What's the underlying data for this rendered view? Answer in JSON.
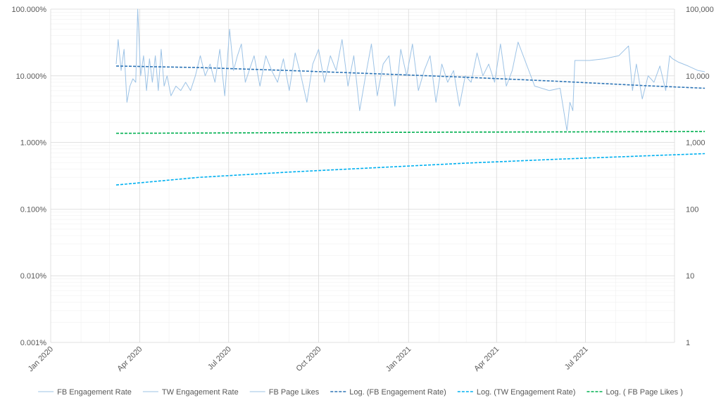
{
  "chart_data": {
    "type": "line",
    "title": "",
    "xlabel": "",
    "ylabel": "",
    "x_axis": {
      "type": "date",
      "range": [
        "2020-01-01",
        "2021-09-30"
      ],
      "tick_labels": [
        "Jan 2020",
        "Apr 2020",
        "Jul 2020",
        "Oct 2020",
        "Jan 2021",
        "Apr 2021",
        "Jul 2021"
      ]
    },
    "y_left": {
      "scale": "log",
      "range": [
        1e-05,
        1
      ],
      "tick_labels": [
        "0.001%",
        "0.010%",
        "0.100%",
        "1.000%",
        "10.000%",
        "100.000%"
      ]
    },
    "y_right": {
      "scale": "log",
      "range": [
        1,
        100000
      ],
      "tick_labels": [
        "1",
        "10",
        "100",
        "1,000",
        "10,000",
        "100,000"
      ]
    },
    "grid": true,
    "legend_position": "bottom",
    "colors": {
      "raw": "#9dc3e6",
      "fb_trend": "#2e75b6",
      "tw_trend": "#00b0f0",
      "likes_trend": "#00b050",
      "grid_major": "#d9d9d9",
      "grid_minor": "#f0f0f0",
      "text": "#595959"
    },
    "series": [
      {
        "name": "FB Engagement Rate",
        "axis": "left",
        "x": [
          "2020-03-08",
          "2020-03-10",
          "2020-03-13",
          "2020-03-16",
          "2020-03-19",
          "2020-03-22",
          "2020-03-25",
          "2020-03-28",
          "2020-03-30",
          "2020-04-02",
          "2020-04-05",
          "2020-04-08",
          "2020-04-11",
          "2020-04-14",
          "2020-04-17",
          "2020-04-20",
          "2020-04-23",
          "2020-04-26",
          "2020-04-29",
          "2020-05-03",
          "2020-05-08",
          "2020-05-13",
          "2020-05-18",
          "2020-05-23",
          "2020-05-28",
          "2020-06-02",
          "2020-06-07",
          "2020-06-12",
          "2020-06-17",
          "2020-06-22",
          "2020-06-27",
          "2020-07-02",
          "2020-07-06",
          "2020-07-10",
          "2020-07-14",
          "2020-07-18",
          "2020-07-22",
          "2020-07-27",
          "2020-08-02",
          "2020-08-08",
          "2020-08-14",
          "2020-08-20",
          "2020-08-26",
          "2020-09-01",
          "2020-09-07",
          "2020-09-13",
          "2020-09-19",
          "2020-09-25",
          "2020-10-01",
          "2020-10-07",
          "2020-10-13",
          "2020-10-19",
          "2020-10-25",
          "2020-10-31",
          "2020-11-06",
          "2020-11-12",
          "2020-11-18",
          "2020-11-24",
          "2020-11-30",
          "2020-12-06",
          "2020-12-12",
          "2020-12-18",
          "2020-12-24",
          "2020-12-30",
          "2021-01-05",
          "2021-01-11",
          "2021-01-17",
          "2021-01-23",
          "2021-01-29",
          "2021-02-04",
          "2021-02-10",
          "2021-02-16",
          "2021-02-22",
          "2021-02-28",
          "2021-03-06",
          "2021-03-12",
          "2021-03-18",
          "2021-03-24",
          "2021-03-30",
          "2021-04-05",
          "2021-04-11",
          "2021-04-17",
          "2021-04-23",
          "2021-05-10",
          "2021-05-25",
          "2021-06-05",
          "2021-06-12",
          "2021-06-15",
          "2021-06-18",
          "2021-06-20",
          "2021-07-05",
          "2021-07-20",
          "2021-08-04",
          "2021-08-14",
          "2021-08-18",
          "2021-08-22",
          "2021-08-28",
          "2021-09-03",
          "2021-09-09",
          "2021-09-15",
          "2021-09-21",
          "2021-09-25",
          "2021-09-28",
          "2021-10-04",
          "2021-10-14",
          "2021-10-24",
          "2021-10-31"
        ],
        "y": [
          0.15,
          0.35,
          0.12,
          0.25,
          0.04,
          0.07,
          0.09,
          0.08,
          1.0,
          0.1,
          0.2,
          0.06,
          0.18,
          0.08,
          0.2,
          0.06,
          0.25,
          0.07,
          0.1,
          0.05,
          0.07,
          0.06,
          0.08,
          0.06,
          0.1,
          0.2,
          0.1,
          0.15,
          0.08,
          0.25,
          0.05,
          0.5,
          0.12,
          0.2,
          0.3,
          0.08,
          0.12,
          0.2,
          0.07,
          0.2,
          0.12,
          0.08,
          0.18,
          0.06,
          0.22,
          0.1,
          0.04,
          0.15,
          0.25,
          0.08,
          0.2,
          0.12,
          0.35,
          0.07,
          0.2,
          0.03,
          0.1,
          0.3,
          0.05,
          0.15,
          0.2,
          0.035,
          0.25,
          0.1,
          0.3,
          0.06,
          0.12,
          0.2,
          0.04,
          0.15,
          0.08,
          0.12,
          0.035,
          0.1,
          0.08,
          0.22,
          0.1,
          0.15,
          0.08,
          0.3,
          0.07,
          0.12,
          0.32,
          0.07,
          0.06,
          0.065,
          0.015,
          0.04,
          0.03,
          0.17,
          0.17,
          0.18,
          0.2,
          0.28,
          0.06,
          0.15,
          0.045,
          0.1,
          0.08,
          0.14,
          0.06,
          0.2,
          0.18,
          0.16,
          0.14,
          0.12,
          0.115
        ]
      },
      {
        "name": "TW Engagement Rate",
        "axis": "left",
        "x": [],
        "y": []
      },
      {
        "name": "FB Page Likes",
        "axis": "right",
        "x": [],
        "y": []
      },
      {
        "name": "Log. (FB Engagement Rate)",
        "axis": "left",
        "style": "dashed",
        "x": [
          "2020-03-08",
          "2020-06-01",
          "2020-09-01",
          "2020-12-01",
          "2021-03-01",
          "2021-06-01",
          "2021-09-01",
          "2021-10-31"
        ],
        "y": [
          0.14,
          0.133,
          0.12,
          0.107,
          0.095,
          0.083,
          0.071,
          0.065
        ]
      },
      {
        "name": "Log. (TW Engagement Rate)",
        "axis": "left",
        "style": "dashed",
        "x": [
          "2020-03-08",
          "2020-06-01",
          "2020-09-01",
          "2020-12-01",
          "2021-03-01",
          "2021-06-01",
          "2021-09-01",
          "2021-10-31"
        ],
        "y": [
          0.0023,
          0.003,
          0.0036,
          0.0042,
          0.0049,
          0.0056,
          0.0063,
          0.0068
        ]
      },
      {
        "name": "Log. ( FB Page Likes )",
        "axis": "right",
        "style": "dashed",
        "x": [
          "2020-03-08",
          "2020-06-01",
          "2020-09-01",
          "2020-12-01",
          "2021-03-01",
          "2021-06-01",
          "2021-09-01",
          "2021-10-31"
        ],
        "y": [
          1370,
          1385,
          1400,
          1415,
          1428,
          1440,
          1450,
          1460
        ]
      }
    ]
  },
  "legend": [
    {
      "label": "FB Engagement Rate",
      "color": "#9dc3e6",
      "dashed": false
    },
    {
      "label": "TW Engagement Rate",
      "color": "#9dc3e6",
      "dashed": false
    },
    {
      "label": "FB Page Likes",
      "color": "#9dc3e6",
      "dashed": false
    },
    {
      "label": "Log. (FB Engagement Rate)",
      "color": "#2e75b6",
      "dashed": true
    },
    {
      "label": "Log. (TW Engagement Rate)",
      "color": "#00b0f0",
      "dashed": true
    },
    {
      "label": "Log. ( FB Page Likes )",
      "color": "#00b050",
      "dashed": true
    }
  ]
}
